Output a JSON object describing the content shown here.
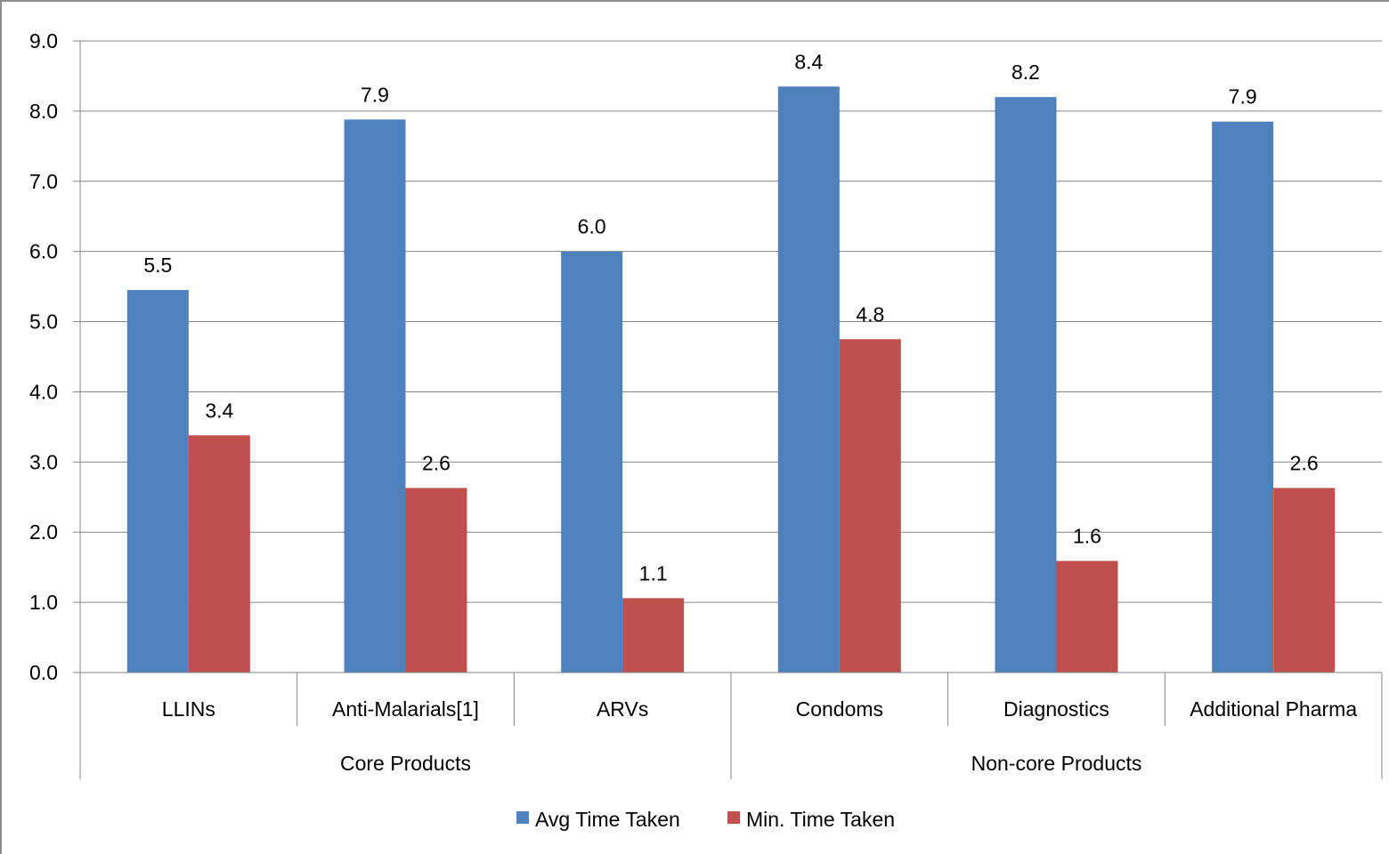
{
  "chart_data": {
    "type": "bar",
    "title": "",
    "xlabel": "",
    "ylabel": "",
    "ylim": [
      0,
      9
    ],
    "y_ticks": [
      "0.0",
      "1.0",
      "2.0",
      "3.0",
      "4.0",
      "5.0",
      "6.0",
      "7.0",
      "8.0",
      "9.0"
    ],
    "grid": true,
    "legend_position": "bottom",
    "categories": [
      "LLINs",
      "Anti-Malarials[1]",
      "ARVs",
      "Condoms",
      "Diagnostics",
      "Additional Pharma"
    ],
    "groups": [
      {
        "label": "Core Products",
        "count": 3
      },
      {
        "label": "Non-core Products",
        "count": 3
      }
    ],
    "series": [
      {
        "name": "Avg Time Taken",
        "color": "#4f81bd",
        "values": [
          5.45,
          7.88,
          6.0,
          8.35,
          8.2,
          7.85
        ],
        "labels": [
          "5.5",
          "7.9",
          "6.0",
          "8.4",
          "8.2",
          "7.9"
        ]
      },
      {
        "name": "Min. Time Taken",
        "color": "#c0504d",
        "values": [
          3.38,
          2.63,
          1.06,
          4.75,
          1.59,
          2.63
        ],
        "labels": [
          "3.4",
          "2.6",
          "1.1",
          "4.8",
          "1.6",
          "2.6"
        ]
      }
    ]
  }
}
